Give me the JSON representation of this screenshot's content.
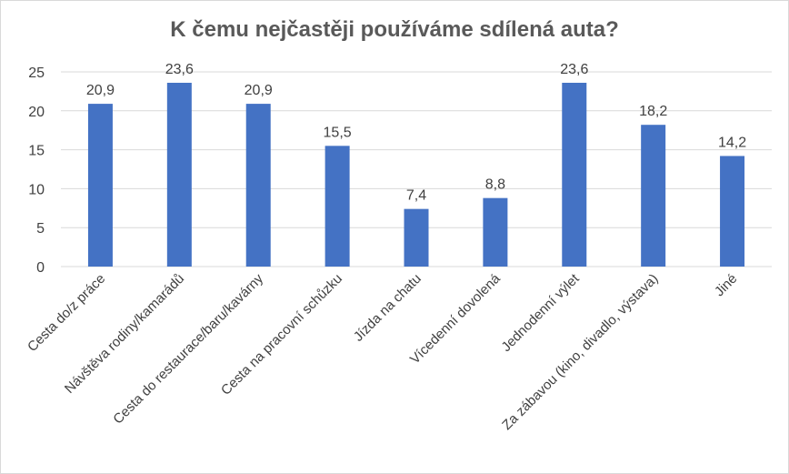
{
  "chart_data": {
    "type": "bar",
    "title": "K čemu nejčastěji používáme sdílená auta?",
    "categories": [
      "Cesta do/z práce",
      "Návštěva rodiny/kamarádů",
      "Cesta do restaurace/baru/kavárny",
      "Cesta na pracovní schůzku",
      "Jízda na chatu",
      "Vícedenní dovolená",
      "Jednodenní výlet",
      "Za zábavou (kino, divadlo, výstava)",
      "Jiné"
    ],
    "values": [
      20.9,
      23.6,
      20.9,
      15.5,
      7.4,
      8.8,
      23.6,
      18.2,
      14.2
    ],
    "data_labels": [
      "20,9",
      "23,6",
      "20,9",
      "15,5",
      "7,4",
      "8,8",
      "23,6",
      "18,2",
      "14,2"
    ],
    "ylim": [
      0,
      25
    ],
    "yticks": [
      0,
      5,
      10,
      15,
      20,
      25
    ],
    "grid": true,
    "legend": "none",
    "bar_color": "#4472C4",
    "grid_color": "#d9d9d9"
  }
}
